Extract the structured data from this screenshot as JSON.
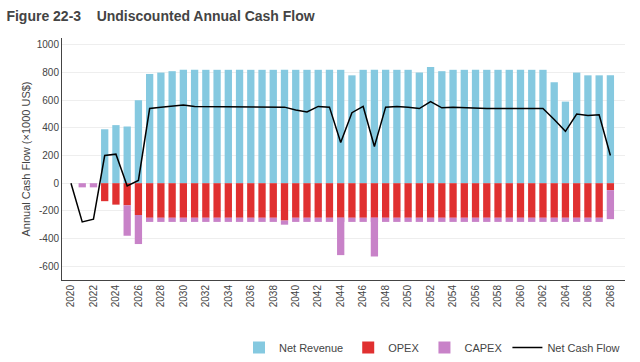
{
  "chart_data": {
    "type": "bar",
    "title": "Figure 22-3    Undiscounted Annual Cash Flow",
    "ylabel": "Annual Cash Flow (×1000 US$)",
    "x": [
      2020,
      2021,
      2022,
      2023,
      2024,
      2025,
      2026,
      2027,
      2028,
      2029,
      2030,
      2031,
      2032,
      2033,
      2034,
      2035,
      2036,
      2037,
      2038,
      2039,
      2040,
      2041,
      2042,
      2043,
      2044,
      2045,
      2046,
      2047,
      2048,
      2049,
      2050,
      2051,
      2052,
      2053,
      2054,
      2055,
      2056,
      2057,
      2058,
      2059,
      2060,
      2061,
      2062,
      2063,
      2064,
      2065,
      2066,
      2067,
      2068
    ],
    "series": [
      {
        "name": "Net Revenue",
        "type": "bar",
        "color": "#85c9e0",
        "values": [
          0,
          0,
          0,
          390,
          420,
          410,
          600,
          790,
          800,
          810,
          820,
          820,
          820,
          820,
          820,
          820,
          820,
          820,
          820,
          820,
          820,
          820,
          820,
          820,
          820,
          780,
          820,
          820,
          820,
          820,
          820,
          800,
          840,
          810,
          820,
          820,
          820,
          820,
          820,
          820,
          820,
          820,
          820,
          730,
          590,
          800,
          780,
          780,
          780
        ]
      },
      {
        "name": "OPEX",
        "type": "bar",
        "color": "#e03030",
        "values": [
          0,
          0,
          0,
          -130,
          -155,
          -160,
          -230,
          -250,
          -250,
          -250,
          -250,
          -250,
          -250,
          -250,
          -250,
          -250,
          -250,
          -250,
          -250,
          -270,
          -250,
          -250,
          -250,
          -250,
          -250,
          -250,
          -250,
          -250,
          -250,
          -250,
          -250,
          -250,
          -250,
          -250,
          -250,
          -250,
          -250,
          -250,
          -250,
          -250,
          -250,
          -250,
          -250,
          -250,
          -250,
          -250,
          -250,
          -250,
          -50
        ]
      },
      {
        "name": "CAPEX",
        "type": "bar",
        "color": "#c882c8",
        "values": [
          0,
          -30,
          -30,
          0,
          0,
          -220,
          -210,
          0,
          0,
          0,
          0,
          0,
          0,
          0,
          0,
          0,
          0,
          0,
          0,
          0,
          0,
          0,
          0,
          0,
          -270,
          0,
          0,
          -280,
          0,
          0,
          0,
          0,
          0,
          0,
          0,
          0,
          0,
          0,
          0,
          0,
          0,
          0,
          0,
          0,
          0,
          0,
          0,
          0,
          -210
        ]
      },
      {
        "name": "CAPEX",
        "type": "bar",
        "color": "#c882c8",
        "values": [
          0,
          0,
          0,
          0,
          0,
          0,
          0,
          -30,
          -30,
          -30,
          -30,
          -30,
          -30,
          -30,
          -30,
          -30,
          -30,
          -30,
          -30,
          -30,
          -30,
          -30,
          -30,
          -30,
          -30,
          -30,
          -30,
          -30,
          -30,
          -30,
          -30,
          -30,
          -30,
          -30,
          -30,
          -30,
          -30,
          -30,
          -30,
          -30,
          -30,
          -30,
          -30,
          -30,
          -30,
          -30,
          -30,
          -30,
          0
        ]
      },
      {
        "name": "Net Cash Flow",
        "type": "line",
        "color": "#000000",
        "values": [
          0,
          -280,
          -260,
          200,
          210,
          -20,
          20,
          540,
          550,
          555,
          565,
          555,
          555,
          555,
          550,
          555,
          555,
          555,
          555,
          550,
          530,
          515,
          555,
          550,
          295,
          510,
          555,
          265,
          550,
          555,
          550,
          540,
          590,
          545,
          550,
          545,
          540,
          540,
          540,
          540,
          545,
          545,
          540,
          460,
          375,
          500,
          490,
          495,
          200
        ]
      }
    ],
    "stacked": true,
    "xlim": [
      2019.2,
      2069.3
    ],
    "xticks": [
      2020,
      2022,
      2024,
      2026,
      2028,
      2030,
      2032,
      2034,
      2036,
      2038,
      2040,
      2042,
      2044,
      2046,
      2048,
      2050,
      2052,
      2054,
      2056,
      2058,
      2060,
      2062,
      2064,
      2066,
      2068
    ],
    "ylim": [
      -700,
      1050
    ],
    "yticks": [
      -600,
      -400,
      -200,
      0,
      200,
      400,
      600,
      800,
      1000
    ],
    "grid": "y",
    "legend": "lower right"
  }
}
